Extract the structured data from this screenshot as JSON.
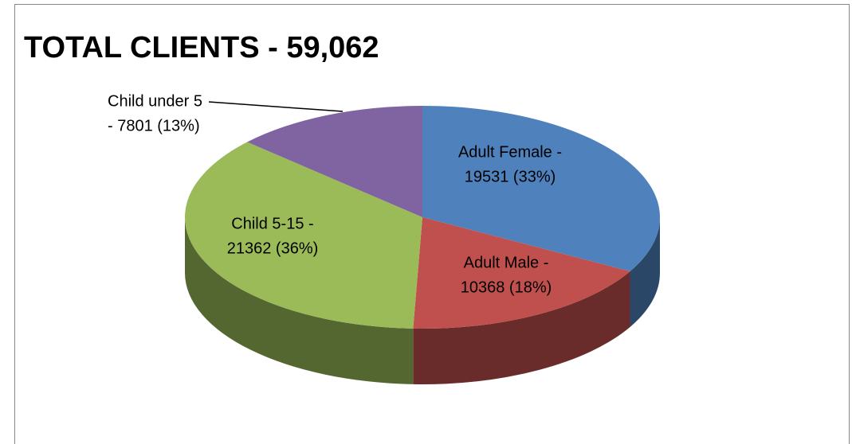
{
  "chart_data": {
    "type": "pie3d",
    "title": "TOTAL CLIENTS - 59,062",
    "categories": [
      "Adult Female -",
      "Adult Male -",
      "Child 5-15 -",
      "Child under 5"
    ],
    "values": [
      19531,
      10368,
      21362,
      7801
    ],
    "value_labels": [
      "19531 (33%)",
      "10368 (18%)",
      "21362 (36%)",
      "- 7801  (13%)"
    ],
    "colors": [
      "#4f81bd",
      "#c0504d",
      "#9bbb59",
      "#8064a2"
    ]
  }
}
